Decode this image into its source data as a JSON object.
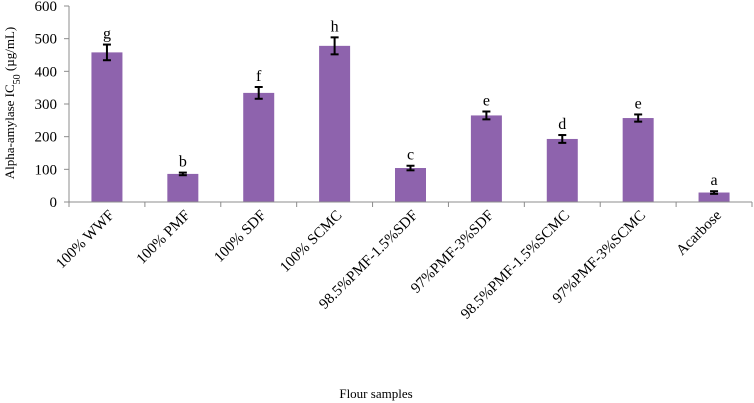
{
  "chart_data": {
    "type": "bar",
    "title": "",
    "xlabel": "Flour samples",
    "ylabel_main": "Alpha-amylase IC",
    "ylabel_sub": "50",
    "ylabel_unit": " (µg/mL)",
    "ylim": [
      0,
      600
    ],
    "yticks": [
      0,
      100,
      200,
      300,
      400,
      500,
      600
    ],
    "grid": false,
    "legend": "none",
    "bar_color": "#8e63ad",
    "categories": [
      "100% WWF",
      "100% PMF",
      "100% SDF",
      "100% SCMC",
      "98.5%PMF-1.5%SDF",
      "97%PMF-3%SDF",
      "98.5%PMF-1.5%SCMC",
      "97%PMF-3%SCMC",
      "Acarbose"
    ],
    "values": [
      458,
      86,
      334,
      478,
      104,
      265,
      193,
      257,
      29
    ],
    "errors": [
      24,
      4,
      18,
      26,
      7,
      12,
      12,
      11,
      4
    ],
    "significance_labels": [
      "g",
      "b",
      "f",
      "h",
      "c",
      "e",
      "d",
      "e",
      "a"
    ]
  }
}
